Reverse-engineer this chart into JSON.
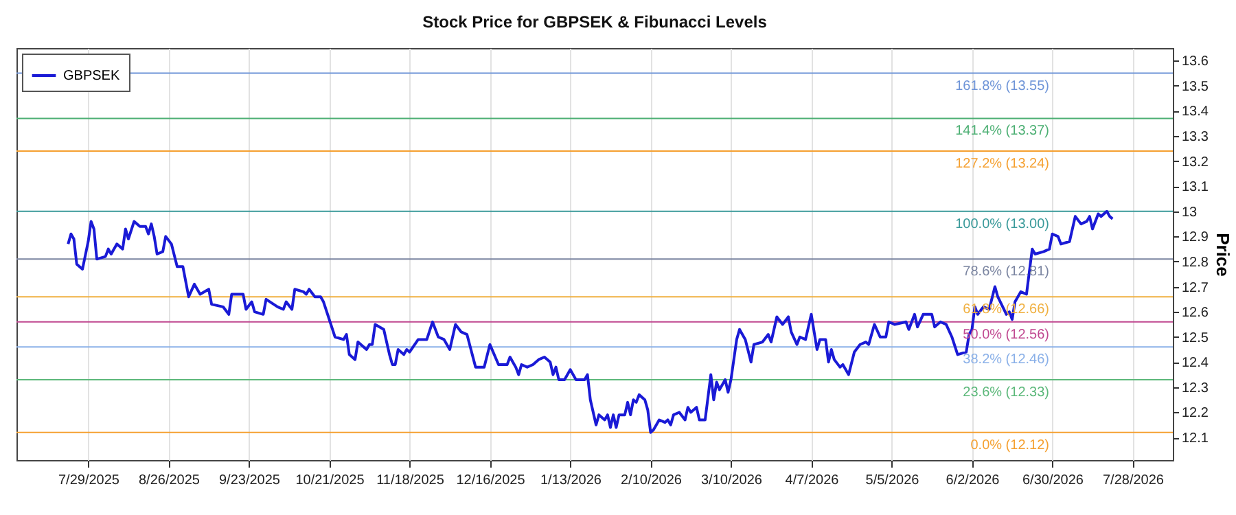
{
  "chart_data": {
    "type": "line",
    "title": "Stock Price for GBPSEK & Fibunacci Levels",
    "ylabel": "Price",
    "xlim": [
      "2025-07-04",
      "2026-08-11"
    ],
    "xticks": [
      {
        "value": "2025-07-29",
        "label": "7/29/2025"
      },
      {
        "value": "2025-08-26",
        "label": "8/26/2025"
      },
      {
        "value": "2025-09-23",
        "label": "9/23/2025"
      },
      {
        "value": "2025-10-21",
        "label": "10/21/2025"
      },
      {
        "value": "2025-11-18",
        "label": "11/18/2025"
      },
      {
        "value": "2025-12-16",
        "label": "12/16/2025"
      },
      {
        "value": "2026-01-13",
        "label": "1/13/2026"
      },
      {
        "value": "2026-02-10",
        "label": "2/10/2026"
      },
      {
        "value": "2026-03-10",
        "label": "3/10/2026"
      },
      {
        "value": "2026-04-07",
        "label": "4/7/2026"
      },
      {
        "value": "2026-05-05",
        "label": "5/5/2026"
      },
      {
        "value": "2026-06-02",
        "label": "6/2/2026"
      },
      {
        "value": "2026-06-30",
        "label": "6/30/2026"
      },
      {
        "value": "2026-07-28",
        "label": "7/28/2026"
      }
    ],
    "ylim": [
      12.01,
      13.65
    ],
    "yticks": [
      12.1,
      12.2,
      12.3,
      12.4,
      12.5,
      12.6,
      12.7,
      12.8,
      12.9,
      13,
      13.1,
      13.2,
      13.3,
      13.4,
      13.5,
      13.6
    ],
    "grid": "x",
    "legend": "top left",
    "line_style": "solid",
    "x": [
      "2025-07-22",
      "2025-07-23",
      "2025-07-24",
      "2025-07-25",
      "2025-07-27",
      "2025-07-29",
      "2025-07-30",
      "2025-07-31",
      "2025-08-01",
      "2025-08-04",
      "2025-08-05",
      "2025-08-06",
      "2025-08-08",
      "2025-08-10",
      "2025-08-11",
      "2025-08-12",
      "2025-08-14",
      "2025-08-16",
      "2025-08-18",
      "2025-08-19",
      "2025-08-20",
      "2025-08-21",
      "2025-08-22",
      "2025-08-24",
      "2025-08-25",
      "2025-08-27",
      "2025-08-29",
      "2025-08-31",
      "2025-09-02",
      "2025-09-04",
      "2025-09-06",
      "2025-09-09",
      "2025-09-10",
      "2025-09-14",
      "2025-09-16",
      "2025-09-17",
      "2025-09-21",
      "2025-09-22",
      "2025-09-24",
      "2025-09-25",
      "2025-09-28",
      "2025-09-29",
      "2025-10-03",
      "2025-10-05",
      "2025-10-06",
      "2025-10-08",
      "2025-10-09",
      "2025-10-12",
      "2025-10-13",
      "2025-10-14",
      "2025-10-16",
      "2025-10-18",
      "2025-10-19",
      "2025-10-21",
      "2025-10-23",
      "2025-10-26",
      "2025-10-27",
      "2025-10-28",
      "2025-10-30",
      "2025-10-31",
      "2025-11-03",
      "2025-11-04",
      "2025-11-05",
      "2025-11-06",
      "2025-11-09",
      "2025-11-11",
      "2025-11-12",
      "2025-11-13",
      "2025-11-14",
      "2025-11-16",
      "2025-11-17",
      "2025-11-18",
      "2025-11-21",
      "2025-11-24",
      "2025-11-26",
      "2025-11-28",
      "2025-11-30",
      "2025-12-02",
      "2025-12-04",
      "2025-12-06",
      "2025-12-08",
      "2025-12-11",
      "2025-12-14",
      "2025-12-16",
      "2025-12-19",
      "2025-12-22",
      "2025-12-23",
      "2025-12-25",
      "2025-12-26",
      "2025-12-27",
      "2025-12-29",
      "2025-12-31",
      "2026-01-02",
      "2026-01-04",
      "2026-01-06",
      "2026-01-07",
      "2026-01-08",
      "2026-01-09",
      "2026-01-11",
      "2026-01-13",
      "2026-01-15",
      "2026-01-18",
      "2026-01-19",
      "2026-01-20",
      "2026-01-22",
      "2026-01-23",
      "2026-01-25",
      "2026-01-26",
      "2026-01-27",
      "2026-01-28",
      "2026-01-29",
      "2026-01-30",
      "2026-02-01",
      "2026-02-02",
      "2026-02-03",
      "2026-02-04",
      "2026-02-05",
      "2026-02-06",
      "2026-02-08",
      "2026-02-09",
      "2026-02-10",
      "2026-02-11",
      "2026-02-13",
      "2026-02-15",
      "2026-02-16",
      "2026-02-17",
      "2026-02-18",
      "2026-02-20",
      "2026-02-22",
      "2026-02-23",
      "2026-02-24",
      "2026-02-26",
      "2026-02-27",
      "2026-03-01",
      "2026-03-02",
      "2026-03-03",
      "2026-03-04",
      "2026-03-05",
      "2026-03-06",
      "2026-03-08",
      "2026-03-09",
      "2026-03-10",
      "2026-03-12",
      "2026-03-13",
      "2026-03-15",
      "2026-03-17",
      "2026-03-18",
      "2026-03-21",
      "2026-03-23",
      "2026-03-24",
      "2026-03-26",
      "2026-03-28",
      "2026-03-30",
      "2026-03-31",
      "2026-04-02",
      "2026-04-03",
      "2026-04-05",
      "2026-04-07",
      "2026-04-09",
      "2026-04-10",
      "2026-04-12",
      "2026-04-13",
      "2026-04-14",
      "2026-04-15",
      "2026-04-17",
      "2026-04-18",
      "2026-04-20",
      "2026-04-22",
      "2026-04-24",
      "2026-04-26",
      "2026-04-27",
      "2026-04-29",
      "2026-05-01",
      "2026-05-03",
      "2026-05-04",
      "2026-05-06",
      "2026-05-10",
      "2026-05-11",
      "2026-05-13",
      "2026-05-14",
      "2026-05-16",
      "2026-05-19",
      "2026-05-20",
      "2026-05-22",
      "2026-05-24",
      "2026-05-26",
      "2026-05-28",
      "2026-05-31",
      "2026-06-01",
      "2026-06-02",
      "2026-06-03",
      "2026-06-04",
      "2026-06-06",
      "2026-06-08",
      "2026-06-10",
      "2026-06-11",
      "2026-06-14",
      "2026-06-15",
      "2026-06-16",
      "2026-06-17",
      "2026-06-19",
      "2026-06-21",
      "2026-06-23",
      "2026-06-24",
      "2026-06-27",
      "2026-06-29",
      "2026-06-30",
      "2026-07-02",
      "2026-07-03",
      "2026-07-06",
      "2026-07-08",
      "2026-07-10",
      "2026-07-12",
      "2026-07-13",
      "2026-07-14",
      "2026-07-16",
      "2026-07-17",
      "2026-07-19",
      "2026-07-20",
      "2026-07-21"
    ],
    "series": [
      {
        "name": "GBPSEK",
        "color": "#1a1ad6",
        "values": [
          12.87,
          12.91,
          12.89,
          12.79,
          12.77,
          12.88,
          12.96,
          12.93,
          12.81,
          12.82,
          12.85,
          12.83,
          12.87,
          12.85,
          12.93,
          12.89,
          12.96,
          12.94,
          12.94,
          12.91,
          12.95,
          12.9,
          12.83,
          12.84,
          12.9,
          12.87,
          12.78,
          12.78,
          12.66,
          12.71,
          12.67,
          12.69,
          12.63,
          12.62,
          12.59,
          12.67,
          12.67,
          12.61,
          12.64,
          12.6,
          12.59,
          12.65,
          12.62,
          12.61,
          12.64,
          12.61,
          12.69,
          12.68,
          12.67,
          12.69,
          12.66,
          12.66,
          12.64,
          12.57,
          12.5,
          12.49,
          12.51,
          12.43,
          12.41,
          12.48,
          12.45,
          12.47,
          12.47,
          12.55,
          12.53,
          12.43,
          12.39,
          12.39,
          12.45,
          12.43,
          12.45,
          12.44,
          12.49,
          12.49,
          12.56,
          12.5,
          12.49,
          12.45,
          12.55,
          12.52,
          12.51,
          12.38,
          12.38,
          12.47,
          12.39,
          12.39,
          12.42,
          12.38,
          12.35,
          12.39,
          12.38,
          12.39,
          12.41,
          12.42,
          12.4,
          12.35,
          12.38,
          12.33,
          12.33,
          12.37,
          12.33,
          12.33,
          12.35,
          12.25,
          12.15,
          12.19,
          12.17,
          12.19,
          12.14,
          12.19,
          12.14,
          12.19,
          12.19,
          12.24,
          12.19,
          12.25,
          12.24,
          12.27,
          12.25,
          12.21,
          12.12,
          12.13,
          12.17,
          12.16,
          12.17,
          12.15,
          12.19,
          12.2,
          12.17,
          12.22,
          12.2,
          12.22,
          12.17,
          12.17,
          12.26,
          12.35,
          12.25,
          12.32,
          12.29,
          12.33,
          12.28,
          12.33,
          12.49,
          12.53,
          12.49,
          12.4,
          12.47,
          12.48,
          12.51,
          12.48,
          12.58,
          12.55,
          12.58,
          12.52,
          12.47,
          12.5,
          12.49,
          12.59,
          12.45,
          12.49,
          12.49,
          12.4,
          12.45,
          12.41,
          12.38,
          12.39,
          12.35,
          12.44,
          12.47,
          12.48,
          12.47,
          12.55,
          12.5,
          12.5,
          12.56,
          12.55,
          12.56,
          12.53,
          12.59,
          12.54,
          12.59,
          12.59,
          12.54,
          12.56,
          12.55,
          12.5,
          12.43,
          12.44,
          12.51,
          12.53,
          12.62,
          12.59,
          12.62,
          12.61,
          12.7,
          12.66,
          12.59,
          12.6,
          12.57,
          12.64,
          12.68,
          12.67,
          12.85,
          12.83,
          12.84,
          12.85,
          12.91,
          12.9,
          12.87,
          12.88,
          12.98,
          12.95,
          12.96,
          12.98,
          12.93,
          12.99,
          12.98,
          13.0,
          12.98,
          12.97
        ]
      }
    ],
    "ref_lines": [
      {
        "axis": "y",
        "value": 13.55,
        "label": "161.8% (13.55)",
        "color": "#6f95d8"
      },
      {
        "axis": "y",
        "value": 13.37,
        "label": "141.4% (13.37)",
        "color": "#4caf73"
      },
      {
        "axis": "y",
        "value": 13.24,
        "label": "127.2% (13.24)",
        "color": "#f5a030"
      },
      {
        "axis": "y",
        "value": 13.0,
        "label": "100.0% (13.00)",
        "color": "#3a9a9a"
      },
      {
        "axis": "y",
        "value": 12.81,
        "label": "78.6% (12.81)",
        "color": "#7a84a0"
      },
      {
        "axis": "y",
        "value": 12.66,
        "label": "61.8% (12.66)",
        "color": "#f0b040"
      },
      {
        "axis": "y",
        "value": 12.56,
        "label": "50.0% (12.56)",
        "color": "#c04890"
      },
      {
        "axis": "y",
        "value": 12.46,
        "label": "38.2% (12.46)",
        "color": "#8ab0e8"
      },
      {
        "axis": "y",
        "value": 12.33,
        "label": "23.6% (12.33)",
        "color": "#5cb87a"
      },
      {
        "axis": "y",
        "value": 12.12,
        "label": "0.0% (12.12)",
        "color": "#f5a030"
      }
    ]
  }
}
